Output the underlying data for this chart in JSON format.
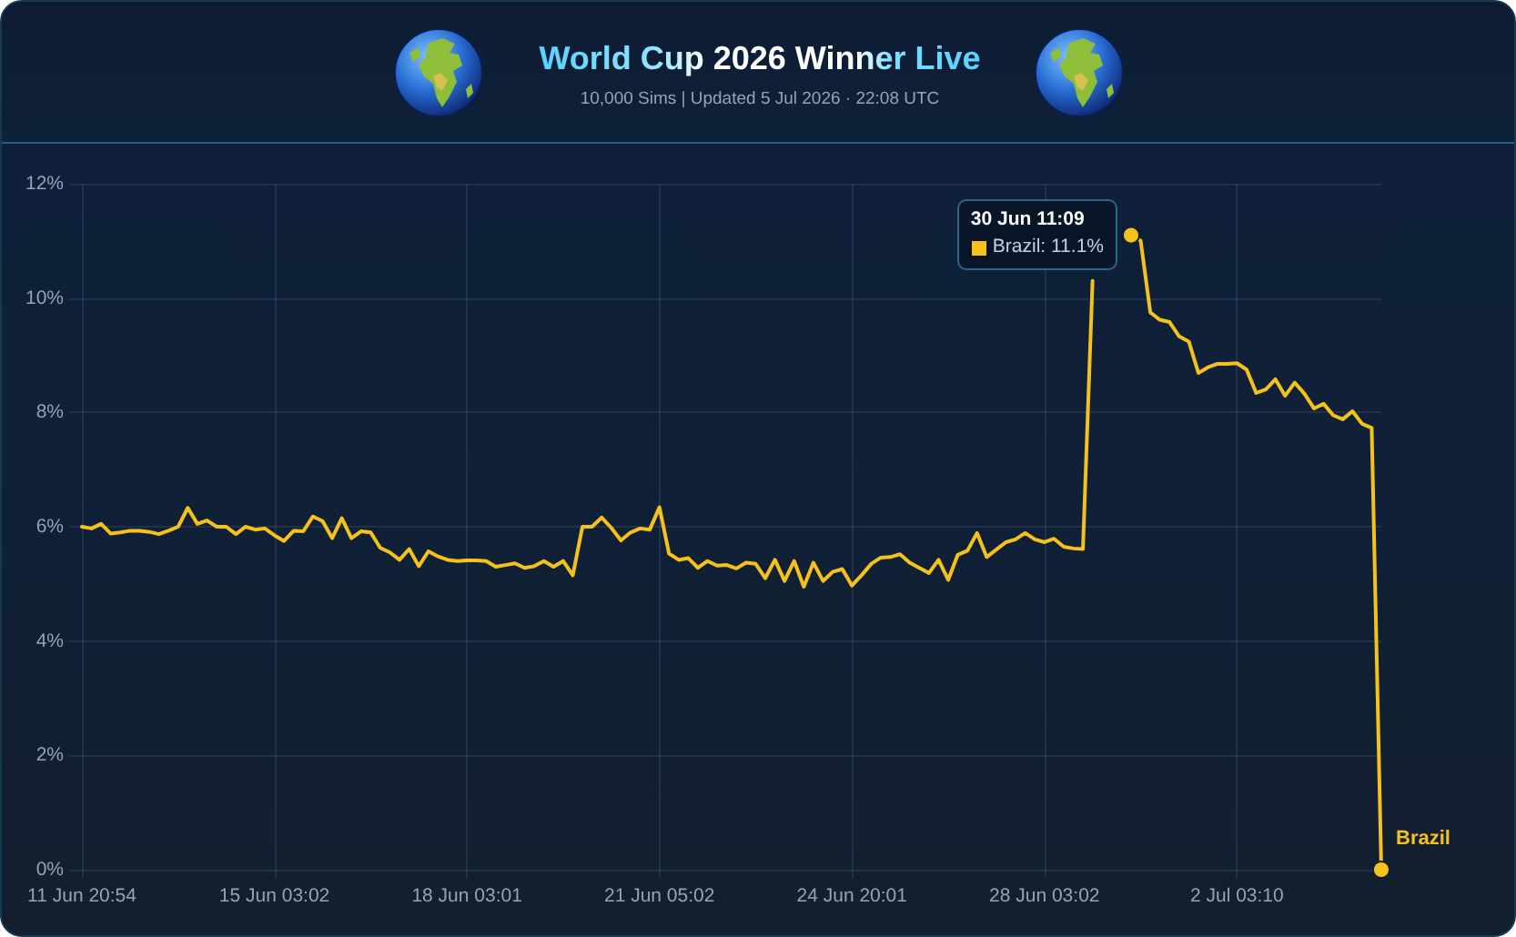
{
  "chart_data": {
    "type": "line",
    "title": "World Cup 2026 Winner Live",
    "subtitle": "10,000 Sims | Updated 5 Jul 2026 · 22:08 UTC",
    "categories": [
      "11 Jun 20:54",
      null,
      null,
      null,
      null,
      null,
      null,
      null,
      null,
      null,
      null,
      null,
      null,
      null,
      null,
      null,
      null,
      null,
      null,
      null,
      "15 Jun 03:02",
      null,
      null,
      null,
      null,
      null,
      null,
      null,
      null,
      null,
      null,
      null,
      null,
      null,
      null,
      null,
      null,
      null,
      null,
      null,
      "18 Jun 03:01",
      null,
      null,
      null,
      null,
      null,
      null,
      null,
      null,
      null,
      null,
      null,
      null,
      null,
      null,
      null,
      null,
      null,
      null,
      null,
      "21 Jun 05:02",
      null,
      null,
      null,
      null,
      null,
      null,
      null,
      null,
      null,
      null,
      null,
      null,
      null,
      null,
      null,
      null,
      null,
      null,
      null,
      "24 Jun 20:01",
      null,
      null,
      null,
      null,
      null,
      null,
      null,
      null,
      null,
      null,
      null,
      null,
      null,
      null,
      null,
      null,
      null,
      null,
      null,
      "28 Jun 03:02",
      null,
      null,
      null,
      null,
      null,
      null,
      null,
      null,
      null,
      null,
      null,
      null,
      null,
      null,
      null,
      null,
      null,
      null,
      null,
      "2 Jul 03:10",
      null,
      null,
      null,
      null,
      null,
      null,
      null,
      null,
      null,
      null,
      null,
      null,
      null,
      null,
      null
    ],
    "series": [
      {
        "name": "Brazil",
        "color": "#f5c21b",
        "values": [
          6.0,
          5.97,
          6.05,
          5.88,
          5.9,
          5.93,
          5.93,
          5.91,
          5.87,
          5.93,
          6.0,
          6.33,
          6.05,
          6.11,
          6.0,
          6.0,
          5.87,
          6.0,
          5.95,
          5.97,
          5.85,
          5.75,
          5.93,
          5.92,
          6.18,
          6.1,
          5.8,
          6.15,
          5.8,
          5.92,
          5.9,
          5.63,
          5.55,
          5.42,
          5.61,
          5.31,
          5.57,
          5.48,
          5.42,
          5.4,
          5.41,
          5.41,
          5.4,
          5.3,
          5.33,
          5.36,
          5.28,
          5.31,
          5.4,
          5.3,
          5.4,
          5.15,
          6.0,
          6.0,
          6.16,
          5.98,
          5.76,
          5.9,
          5.97,
          5.95,
          6.34,
          5.53,
          5.42,
          5.45,
          5.28,
          5.4,
          5.32,
          5.33,
          5.27,
          5.37,
          5.35,
          5.1,
          5.42,
          5.05,
          5.4,
          4.95,
          5.37,
          5.05,
          5.21,
          5.26,
          4.97,
          5.15,
          5.35,
          5.46,
          5.47,
          5.52,
          5.37,
          5.28,
          5.19,
          5.42,
          5.07,
          5.51,
          5.58,
          5.89,
          5.47,
          5.6,
          5.73,
          5.78,
          5.89,
          5.78,
          5.73,
          5.79,
          5.65,
          5.62,
          5.61,
          10.3,
          null,
          null,
          null,
          11.1,
          11.0,
          9.75,
          9.62,
          9.58,
          9.33,
          9.24,
          8.69,
          8.79,
          8.85,
          8.85,
          8.86,
          8.75,
          8.34,
          8.4,
          8.58,
          8.29,
          8.52,
          8.33,
          8.07,
          8.15,
          7.95,
          7.88,
          8.02,
          7.8,
          7.73,
          0
        ]
      }
    ],
    "ylim": [
      0,
      12
    ],
    "yticks": [
      {
        "value": 0,
        "label": "0%"
      },
      {
        "value": 2,
        "label": "2%"
      },
      {
        "value": 4,
        "label": "4%"
      },
      {
        "value": 6,
        "label": "6%"
      },
      {
        "value": 8,
        "label": "8%"
      },
      {
        "value": 10,
        "label": "10%"
      },
      {
        "value": 12,
        "label": "12%"
      }
    ],
    "grid": true,
    "annotations": [
      "30 Jun 11:09\nBrazil: 11.1%"
    ]
  }
}
